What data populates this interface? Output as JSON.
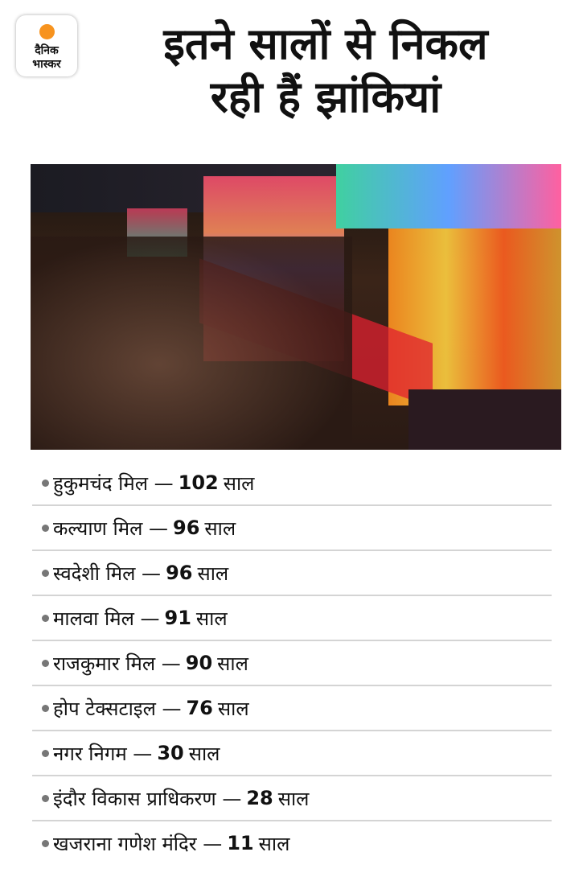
{
  "logo": {
    "line1": "दैनिक",
    "line2": "भास्कर",
    "accent": "#f7931e"
  },
  "title": {
    "line1": "इतने सालों से निकल",
    "line2": "रही हैं झांकियां"
  },
  "items": [
    {
      "name": "हुकुमचंद मिल —",
      "years": "102",
      "unit": "साल"
    },
    {
      "name": "कल्याण मिल —",
      "years": "96",
      "unit": "साल"
    },
    {
      "name": "स्वदेशी मिल —",
      "years": "96",
      "unit": "साल"
    },
    {
      "name": "मालवा मिल —",
      "years": "91",
      "unit": "साल"
    },
    {
      "name": "राजकुमार मिल —",
      "years": "90",
      "unit": "साल"
    },
    {
      "name": "होप टेक्सटाइल —",
      "years": "76",
      "unit": "साल"
    },
    {
      "name": "नगर निगम —",
      "years": "30",
      "unit": "साल"
    },
    {
      "name": "इंदौर विकास प्राधिकरण —",
      "years": "28",
      "unit": "साल"
    },
    {
      "name": "खजराना गणेश मंदिर —",
      "years": "11",
      "unit": "साल"
    }
  ]
}
